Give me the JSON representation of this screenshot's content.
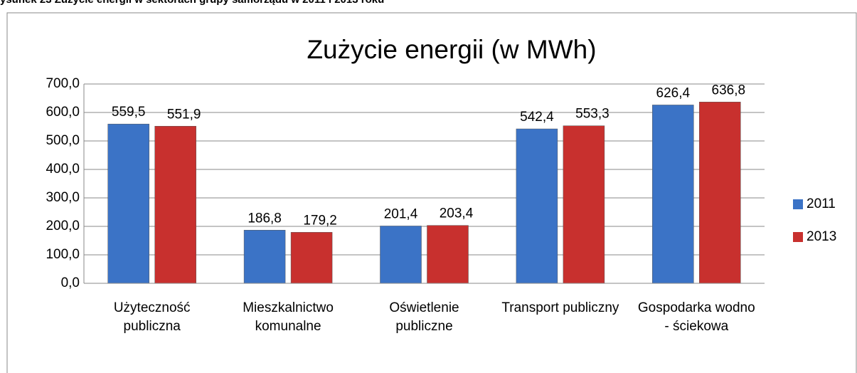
{
  "caption": "ysunek 23 Zużycie energii w sektorach grupy samorządu w 2011 i 2013 roku",
  "chart_data": {
    "type": "bar",
    "title": "Zużycie energii (w MWh)",
    "categories": [
      "Użyteczność publiczna",
      "Mieszkalnictwo komunalne",
      "Oświetlenie publiczne",
      "Transport publiczny",
      "Gospodarka wodno - ściekowa"
    ],
    "series": [
      {
        "name": "2011",
        "color": "#3b73c6",
        "values": [
          559.5,
          186.8,
          201.4,
          542.4,
          626.4
        ],
        "value_labels": [
          "559,5",
          "186,8",
          "201,4",
          "542,4",
          "626,4"
        ]
      },
      {
        "name": "2013",
        "color": "#c8302e",
        "values": [
          551.9,
          179.2,
          203.4,
          553.3,
          636.8
        ],
        "value_labels": [
          "551,9",
          "179,2",
          "203,4",
          "553,3",
          "636,8"
        ]
      }
    ],
    "ylim": [
      0,
      700
    ],
    "yticks": [
      {
        "value": 0,
        "label": "0,0"
      },
      {
        "value": 100,
        "label": "100,0"
      },
      {
        "value": 200,
        "label": "200,0"
      },
      {
        "value": 300,
        "label": "300,0"
      },
      {
        "value": 400,
        "label": "400,0"
      },
      {
        "value": 500,
        "label": "500,0"
      },
      {
        "value": 600,
        "label": "600,0"
      },
      {
        "value": 700,
        "label": "700,0"
      }
    ],
    "grid": true,
    "legend": "right"
  }
}
